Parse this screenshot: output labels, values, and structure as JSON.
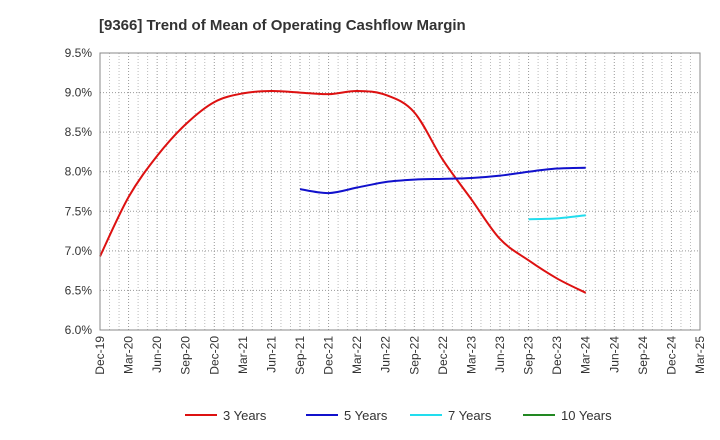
{
  "chart_data": {
    "type": "line",
    "title": "[9366]  Trend of Mean of Operating Cashflow Margin",
    "xlabel": "",
    "ylabel": "",
    "ylim": [
      6.0,
      9.5
    ],
    "y_ticks": [
      "6.0%",
      "6.5%",
      "7.0%",
      "7.5%",
      "8.0%",
      "8.5%",
      "9.0%",
      "9.5%"
    ],
    "categories": [
      "Dec-19",
      "Mar-20",
      "Jun-20",
      "Sep-20",
      "Dec-20",
      "Mar-21",
      "Jun-21",
      "Sep-21",
      "Dec-21",
      "Mar-22",
      "Jun-22",
      "Sep-22",
      "Dec-22",
      "Mar-23",
      "Jun-23",
      "Sep-23",
      "Dec-23",
      "Mar-24",
      "Jun-24",
      "Sep-24",
      "Dec-24",
      "Mar-25"
    ],
    "grid": true,
    "legend_position": "bottom",
    "series": [
      {
        "name": "3 Years",
        "color": "#dd1111",
        "values": [
          6.93,
          7.68,
          8.2,
          8.6,
          8.88,
          8.99,
          9.02,
          9.0,
          8.98,
          9.02,
          8.97,
          8.75,
          8.15,
          7.65,
          7.15,
          6.88,
          6.65,
          6.47,
          null,
          null,
          null,
          null
        ]
      },
      {
        "name": "5 Years",
        "color": "#1111cc",
        "values": [
          null,
          null,
          null,
          null,
          null,
          null,
          null,
          7.78,
          7.73,
          7.8,
          7.87,
          7.9,
          7.91,
          7.92,
          7.95,
          8.0,
          8.04,
          8.05,
          null,
          null,
          null,
          null
        ]
      },
      {
        "name": "7 Years",
        "color": "#22ddee",
        "values": [
          null,
          null,
          null,
          null,
          null,
          null,
          null,
          null,
          null,
          null,
          null,
          null,
          null,
          null,
          null,
          7.4,
          7.41,
          7.45,
          null,
          null,
          null,
          null
        ]
      },
      {
        "name": "10 Years",
        "color": "#228822",
        "values": [
          null,
          null,
          null,
          null,
          null,
          null,
          null,
          null,
          null,
          null,
          null,
          null,
          null,
          null,
          null,
          null,
          null,
          null,
          null,
          null,
          null,
          null
        ]
      }
    ]
  }
}
